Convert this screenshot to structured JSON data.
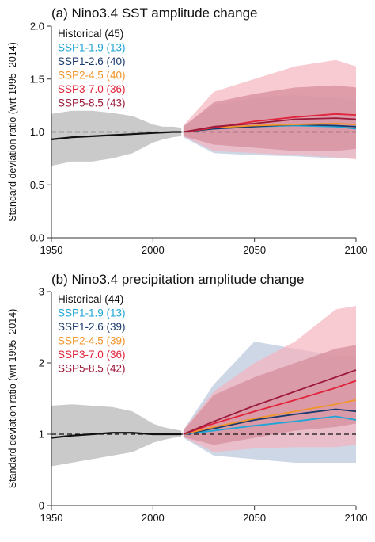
{
  "chart_data": [
    {
      "type": "line",
      "title": "(a) Nino3.4 SST amplitude change",
      "ylabel": "Standard deviation ratio (wrt 1995–2014)",
      "xlabel": "",
      "xlim": [
        1950,
        2100
      ],
      "ylim": [
        0.0,
        2.0
      ],
      "xticks": [
        "1950",
        "2000",
        "2050",
        "2100"
      ],
      "yticks": [
        "0.0",
        "0.5",
        "1.0",
        "1.5",
        "2.0"
      ],
      "reference_line": 1.0,
      "legend_position": "top-left",
      "legend": [
        {
          "label": "Historical (45)",
          "color": "#111111"
        },
        {
          "label": "SSP1-1.9 (13)",
          "color": "#1fa5d6"
        },
        {
          "label": "SSP1-2.6 (40)",
          "color": "#1b3a6b"
        },
        {
          "label": "SSP2-4.5 (40)",
          "color": "#f0952a"
        },
        {
          "label": "SSP3-7.0 (36)",
          "color": "#e0233a"
        },
        {
          "label": "SSP5-8.5 (43)",
          "color": "#9c1a3a"
        }
      ],
      "bands": [
        {
          "name": "Historical",
          "color": "#b3b3b3",
          "x": [
            1950,
            1960,
            1970,
            1980,
            1990,
            2000,
            2005,
            2010,
            2014
          ],
          "lower": [
            0.68,
            0.72,
            0.72,
            0.75,
            0.8,
            0.9,
            0.93,
            0.95,
            0.96
          ],
          "upper": [
            1.17,
            1.2,
            1.2,
            1.18,
            1.15,
            1.07,
            1.05,
            1.05,
            1.04
          ]
        },
        {
          "name": "SSP1-2.6",
          "color": "#b8c6dc",
          "x": [
            2015,
            2030,
            2050,
            2070,
            2090,
            2100
          ],
          "lower": [
            0.95,
            0.8,
            0.78,
            0.77,
            0.75,
            0.76
          ],
          "upper": [
            1.06,
            1.25,
            1.32,
            1.35,
            1.32,
            1.3
          ]
        },
        {
          "name": "SSP3-7.0",
          "color": "#f5b4bd",
          "x": [
            2015,
            2030,
            2050,
            2070,
            2090,
            2100
          ],
          "lower": [
            0.96,
            0.82,
            0.8,
            0.78,
            0.76,
            0.74
          ],
          "upper": [
            1.06,
            1.38,
            1.5,
            1.62,
            1.68,
            1.62
          ]
        },
        {
          "name": "SSP5-8.5",
          "color": "#d48a9a",
          "x": [
            2015,
            2030,
            2050,
            2070,
            2090,
            2100
          ],
          "lower": [
            0.96,
            0.88,
            0.85,
            0.82,
            0.82,
            0.84
          ],
          "upper": [
            1.05,
            1.28,
            1.36,
            1.42,
            1.44,
            1.42
          ]
        }
      ],
      "series": [
        {
          "name": "Historical",
          "color": "#111111",
          "x": [
            1950,
            1960,
            1970,
            1980,
            1990,
            2000,
            2010,
            2014
          ],
          "values": [
            0.93,
            0.95,
            0.96,
            0.97,
            0.98,
            0.99,
            1.0,
            1.0
          ]
        },
        {
          "name": "SSP1-1.9",
          "color": "#1fa5d6",
          "x": [
            2015,
            2030,
            2050,
            2070,
            2090,
            2100
          ],
          "values": [
            1.0,
            1.03,
            1.05,
            1.06,
            1.05,
            1.03
          ]
        },
        {
          "name": "SSP1-2.6",
          "color": "#1b3a6b",
          "x": [
            2015,
            2030,
            2050,
            2070,
            2090,
            2100
          ],
          "values": [
            1.0,
            1.03,
            1.05,
            1.07,
            1.06,
            1.05
          ]
        },
        {
          "name": "SSP2-4.5",
          "color": "#f0952a",
          "x": [
            2015,
            2030,
            2050,
            2070,
            2090,
            2100
          ],
          "values": [
            1.0,
            1.04,
            1.06,
            1.07,
            1.08,
            1.07
          ]
        },
        {
          "name": "SSP3-7.0",
          "color": "#e0233a",
          "x": [
            2015,
            2030,
            2050,
            2070,
            2090,
            2100
          ],
          "values": [
            1.0,
            1.04,
            1.1,
            1.14,
            1.17,
            1.16
          ]
        },
        {
          "name": "SSP5-8.5",
          "color": "#9c1a3a",
          "x": [
            2015,
            2030,
            2050,
            2070,
            2090,
            2100
          ],
          "values": [
            1.0,
            1.05,
            1.08,
            1.12,
            1.13,
            1.12
          ]
        }
      ]
    },
    {
      "type": "line",
      "title": "(b) Nino3.4 precipitation amplitude change",
      "ylabel": "Standard deviation ratio (wrt 1995–2014)",
      "xlabel": "",
      "xlim": [
        1950,
        2100
      ],
      "ylim": [
        0,
        3
      ],
      "xticks": [
        "1950",
        "2000",
        "2050",
        "2100"
      ],
      "yticks": [
        "0",
        "1",
        "2",
        "3"
      ],
      "reference_line": 1.0,
      "legend_position": "top-left",
      "legend": [
        {
          "label": "Historical (44)",
          "color": "#111111"
        },
        {
          "label": "SSP1-1.9 (13)",
          "color": "#1fa5d6"
        },
        {
          "label": "SSP1-2.6 (39)",
          "color": "#1b3a6b"
        },
        {
          "label": "SSP2-4.5 (39)",
          "color": "#f0952a"
        },
        {
          "label": "SSP3-7.0 (36)",
          "color": "#e0233a"
        },
        {
          "label": "SSP5-8.5 (42)",
          "color": "#9c1a3a"
        }
      ],
      "bands": [
        {
          "name": "Historical",
          "color": "#b3b3b3",
          "x": [
            1950,
            1960,
            1970,
            1980,
            1990,
            2000,
            2005,
            2010,
            2014
          ],
          "lower": [
            0.55,
            0.6,
            0.65,
            0.7,
            0.75,
            0.88,
            0.92,
            0.95,
            0.96
          ],
          "upper": [
            1.4,
            1.42,
            1.4,
            1.38,
            1.32,
            1.15,
            1.1,
            1.07,
            1.05
          ]
        },
        {
          "name": "SSP1-2.6",
          "color": "#b8c6dc",
          "x": [
            2015,
            2030,
            2050,
            2070,
            2090,
            2100
          ],
          "lower": [
            0.95,
            0.7,
            0.65,
            0.6,
            0.6,
            0.6
          ],
          "upper": [
            1.06,
            1.7,
            2.3,
            2.2,
            2.1,
            2.1
          ]
        },
        {
          "name": "SSP3-7.0",
          "color": "#f5b4bd",
          "x": [
            2015,
            2030,
            2050,
            2070,
            2090,
            2100
          ],
          "lower": [
            0.96,
            0.75,
            0.8,
            0.82,
            0.82,
            0.85
          ],
          "upper": [
            1.06,
            1.6,
            2.0,
            2.3,
            2.75,
            2.8
          ]
        },
        {
          "name": "SSP5-8.5",
          "color": "#d48a9a",
          "x": [
            2015,
            2030,
            2050,
            2070,
            2090,
            2100
          ],
          "lower": [
            0.96,
            0.85,
            0.95,
            1.05,
            1.1,
            1.15
          ],
          "upper": [
            1.05,
            1.55,
            1.8,
            2.0,
            2.2,
            2.25
          ]
        }
      ],
      "series": [
        {
          "name": "Historical",
          "color": "#111111",
          "x": [
            1950,
            1960,
            1970,
            1980,
            1990,
            2000,
            2010,
            2014
          ],
          "values": [
            0.95,
            0.98,
            1.0,
            1.02,
            1.02,
            1.0,
            1.0,
            1.0
          ]
        },
        {
          "name": "SSP1-1.9",
          "color": "#1fa5d6",
          "x": [
            2015,
            2030,
            2050,
            2070,
            2090,
            2100
          ],
          "values": [
            1.0,
            1.05,
            1.12,
            1.18,
            1.25,
            1.2
          ]
        },
        {
          "name": "SSP1-2.6",
          "color": "#1b3a6b",
          "x": [
            2015,
            2030,
            2050,
            2070,
            2090,
            2100
          ],
          "values": [
            1.0,
            1.08,
            1.2,
            1.28,
            1.35,
            1.32
          ]
        },
        {
          "name": "SSP2-4.5",
          "color": "#f0952a",
          "x": [
            2015,
            2030,
            2050,
            2070,
            2090,
            2100
          ],
          "values": [
            1.0,
            1.1,
            1.22,
            1.32,
            1.42,
            1.48
          ]
        },
        {
          "name": "SSP3-7.0",
          "color": "#e0233a",
          "x": [
            2015,
            2030,
            2050,
            2070,
            2090,
            2100
          ],
          "values": [
            1.0,
            1.15,
            1.32,
            1.48,
            1.65,
            1.75
          ]
        },
        {
          "name": "SSP5-8.5",
          "color": "#9c1a3a",
          "x": [
            2015,
            2030,
            2050,
            2070,
            2090,
            2100
          ],
          "values": [
            1.0,
            1.18,
            1.4,
            1.6,
            1.8,
            1.9
          ]
        }
      ]
    }
  ]
}
